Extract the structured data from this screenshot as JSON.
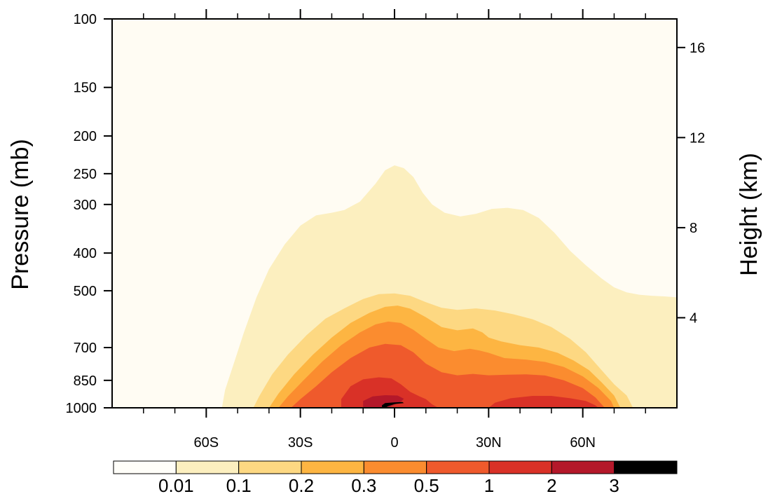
{
  "chart_data": {
    "type": "heatmap",
    "subtype": "filled-contour-latitude-pressure",
    "title": "",
    "left_axis": {
      "label": "Pressure (mb)",
      "scale": "log",
      "reversed": true,
      "range": [
        1000,
        100
      ],
      "ticks": [
        100,
        150,
        200,
        250,
        300,
        400,
        500,
        700,
        850,
        1000
      ],
      "tick_labels": [
        "100",
        "150",
        "200",
        "250",
        "300",
        "400",
        "500",
        "700",
        "850",
        "1000"
      ]
    },
    "right_axis": {
      "label": "Height (km)",
      "ticks": [
        4,
        8,
        12,
        16
      ],
      "tick_labels": [
        "4",
        "8",
        "12",
        "16"
      ]
    },
    "x_axis": {
      "label": "",
      "range": [
        -90,
        90
      ],
      "major_ticks": [
        -60,
        -30,
        0,
        30,
        60
      ],
      "tick_labels": [
        "60S",
        "30S",
        "0",
        "30N",
        "60N"
      ],
      "minor_ticks": [
        -80,
        -70,
        -50,
        -40,
        -20,
        -10,
        10,
        20,
        40,
        50,
        70,
        80
      ]
    },
    "colorbar": {
      "levels": [
        "0.01",
        "0.1",
        "0.2",
        "0.3",
        "0.5",
        "1",
        "2",
        "3"
      ],
      "colors": [
        "#fffef9",
        "#fcefbf",
        "#fdd882",
        "#fdb542",
        "#fb8c2f",
        "#ef5a2c",
        "#d93127",
        "#b4182a",
        "#000000"
      ],
      "background_fill": "#fffcf3"
    },
    "contours": [
      {
        "level_min": "0.01",
        "color": "#fcefbf",
        "points": [
          [
            -55,
            1000
          ],
          [
            -54,
            900
          ],
          [
            -51,
            760
          ],
          [
            -48,
            640
          ],
          [
            -44,
            520
          ],
          [
            -40,
            440
          ],
          [
            -35,
            380
          ],
          [
            -30,
            340
          ],
          [
            -25,
            320
          ],
          [
            -20,
            315
          ],
          [
            -16,
            310
          ],
          [
            -11,
            295
          ],
          [
            -6,
            265
          ],
          [
            -3,
            245
          ],
          [
            0,
            238
          ],
          [
            3,
            242
          ],
          [
            6,
            255
          ],
          [
            9,
            280
          ],
          [
            12,
            300
          ],
          [
            16,
            315
          ],
          [
            21,
            322
          ],
          [
            26,
            317
          ],
          [
            31,
            308
          ],
          [
            36,
            306
          ],
          [
            41,
            310
          ],
          [
            46,
            325
          ],
          [
            51,
            355
          ],
          [
            56,
            395
          ],
          [
            61,
            430
          ],
          [
            66,
            465
          ],
          [
            70,
            490
          ],
          [
            74,
            505
          ],
          [
            78,
            512
          ],
          [
            82,
            515
          ],
          [
            86,
            517
          ],
          [
            90,
            520
          ],
          [
            90,
            1000
          ]
        ]
      },
      {
        "level_min": "0.1",
        "color": "#fdd882",
        "points": [
          [
            -45,
            1000
          ],
          [
            -43,
            930
          ],
          [
            -39,
            820
          ],
          [
            -34,
            730
          ],
          [
            -28,
            650
          ],
          [
            -22,
            590
          ],
          [
            -16,
            555
          ],
          [
            -10,
            525
          ],
          [
            -5,
            510
          ],
          [
            0,
            508
          ],
          [
            5,
            515
          ],
          [
            10,
            535
          ],
          [
            15,
            553
          ],
          [
            20,
            560
          ],
          [
            26,
            555
          ],
          [
            32,
            562
          ],
          [
            38,
            575
          ],
          [
            44,
            592
          ],
          [
            50,
            620
          ],
          [
            56,
            665
          ],
          [
            61,
            720
          ],
          [
            66,
            800
          ],
          [
            70,
            870
          ],
          [
            74,
            930
          ],
          [
            76,
            1000
          ]
        ]
      },
      {
        "level_min": "0.2",
        "color": "#fdb542",
        "points": [
          [
            -40,
            1000
          ],
          [
            -37,
            920
          ],
          [
            -32,
            820
          ],
          [
            -26,
            730
          ],
          [
            -20,
            660
          ],
          [
            -14,
            605
          ],
          [
            -8,
            570
          ],
          [
            -3,
            550
          ],
          [
            1,
            546
          ],
          [
            5,
            556
          ],
          [
            10,
            585
          ],
          [
            15,
            620
          ],
          [
            20,
            632
          ],
          [
            25,
            625
          ],
          [
            28,
            640
          ],
          [
            30,
            660
          ],
          [
            34,
            675
          ],
          [
            40,
            690
          ],
          [
            46,
            700
          ],
          [
            52,
            722
          ],
          [
            57,
            755
          ],
          [
            62,
            800
          ],
          [
            66,
            860
          ],
          [
            70,
            930
          ],
          [
            72,
            1000
          ]
        ]
      },
      {
        "level_min": "0.3",
        "color": "#fb8c2f",
        "points": [
          [
            -37,
            1000
          ],
          [
            -34,
            935
          ],
          [
            -29,
            850
          ],
          [
            -23,
            760
          ],
          [
            -17,
            690
          ],
          [
            -11,
            640
          ],
          [
            -6,
            610
          ],
          [
            -2,
            600
          ],
          [
            2,
            605
          ],
          [
            6,
            630
          ],
          [
            10,
            665
          ],
          [
            14,
            700
          ],
          [
            19,
            715
          ],
          [
            24,
            705
          ],
          [
            27,
            712
          ],
          [
            30,
            722
          ],
          [
            35,
            745
          ],
          [
            42,
            752
          ],
          [
            48,
            762
          ],
          [
            54,
            785
          ],
          [
            60,
            830
          ],
          [
            65,
            890
          ],
          [
            69,
            960
          ],
          [
            70,
            1000
          ]
        ]
      },
      {
        "level_min": "0.5",
        "color": "#ef5a2c",
        "points": [
          [
            -33,
            1000
          ],
          [
            -30,
            950
          ],
          [
            -25,
            880
          ],
          [
            -20,
            810
          ],
          [
            -14,
            745
          ],
          [
            -8,
            700
          ],
          [
            -3,
            685
          ],
          [
            2,
            690
          ],
          [
            6,
            720
          ],
          [
            10,
            770
          ],
          [
            15,
            810
          ],
          [
            20,
            825
          ],
          [
            25,
            818
          ],
          [
            30,
            825
          ],
          [
            36,
            822
          ],
          [
            42,
            820
          ],
          [
            48,
            826
          ],
          [
            54,
            850
          ],
          [
            60,
            890
          ],
          [
            64,
            940
          ],
          [
            67,
            1000
          ]
        ]
      },
      {
        "level_min": "1",
        "color": "#d93127",
        "points": [
          [
            -17,
            1000
          ],
          [
            -17,
            950
          ],
          [
            -14,
            880
          ],
          [
            -10,
            845
          ],
          [
            -5,
            835
          ],
          [
            -1,
            840
          ],
          [
            2,
            870
          ],
          [
            5,
            910
          ],
          [
            8,
            935
          ],
          [
            10,
            950
          ],
          [
            12,
            980
          ],
          [
            14,
            1000
          ]
        ]
      },
      {
        "level_min": "1",
        "color": "#d93127",
        "points": [
          [
            30,
            1000
          ],
          [
            32,
            970
          ],
          [
            37,
            945
          ],
          [
            44,
            932
          ],
          [
            50,
            932
          ],
          [
            56,
            945
          ],
          [
            61,
            960
          ],
          [
            64,
            985
          ],
          [
            65,
            1000
          ]
        ]
      },
      {
        "level_min": "2",
        "color": "#b4182a",
        "points": [
          [
            -10,
            1000
          ],
          [
            -10,
            960
          ],
          [
            -7,
            935
          ],
          [
            -3,
            928
          ],
          [
            1,
            930
          ],
          [
            3,
            948
          ],
          [
            2,
            965
          ],
          [
            -1,
            990
          ],
          [
            -2,
            1000
          ]
        ]
      },
      {
        "level_min": "3",
        "color": "#000000",
        "points": [
          [
            -4,
            1000
          ],
          [
            -4,
            985
          ],
          [
            -3,
            972
          ],
          [
            0,
            968
          ],
          [
            2.5,
            966
          ],
          [
            3,
            972
          ],
          [
            0,
            978
          ],
          [
            -2,
            990
          ],
          [
            -3,
            1000
          ]
        ]
      }
    ]
  }
}
